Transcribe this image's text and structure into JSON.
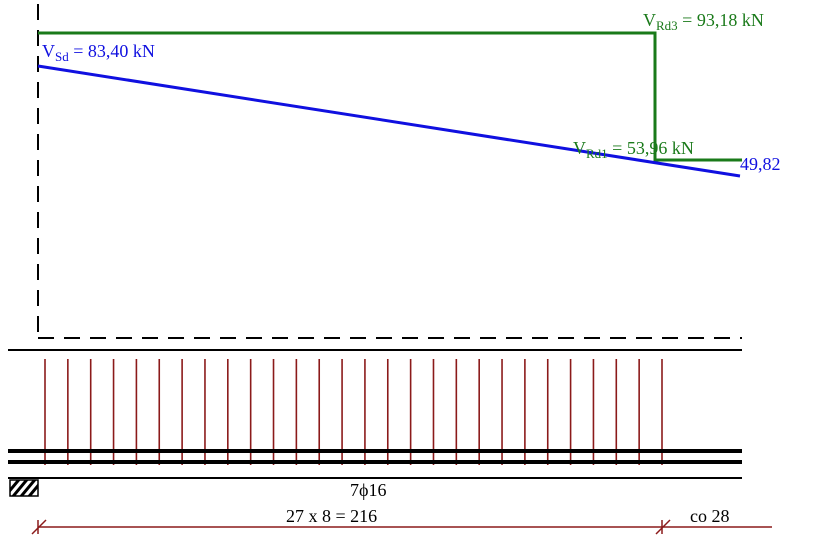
{
  "diagram": {
    "colors": {
      "capacity": "#1a7a1a",
      "design_shear": "#1010e0",
      "stirrups": "#8b1a1a",
      "dimension": "#8b1a1a",
      "lines": "#000000"
    },
    "labels": {
      "vrd3": {
        "base": "V",
        "sub": "Rd3",
        "rest": " = 93,18 kN"
      },
      "vsd": {
        "base": "V",
        "sub": "Sd",
        "rest": " = 83,40 kN"
      },
      "vrd1": {
        "base": "V",
        "sub": "Rd1",
        "rest": " = 53,96 kN"
      },
      "end_value": "49,82",
      "rebar": "7ϕ16",
      "stirrup_spacing": "27 x 8 = 216",
      "remaining_spacing": "co 28"
    },
    "stirrups": {
      "count": 28,
      "spacing_cm": 8,
      "spans": 27,
      "total_cm": 216
    },
    "shear_values_kN": {
      "vrd3": 93.18,
      "vsd_start": 83.4,
      "vrd1": 53.96,
      "vsd_end": 49.82
    }
  }
}
